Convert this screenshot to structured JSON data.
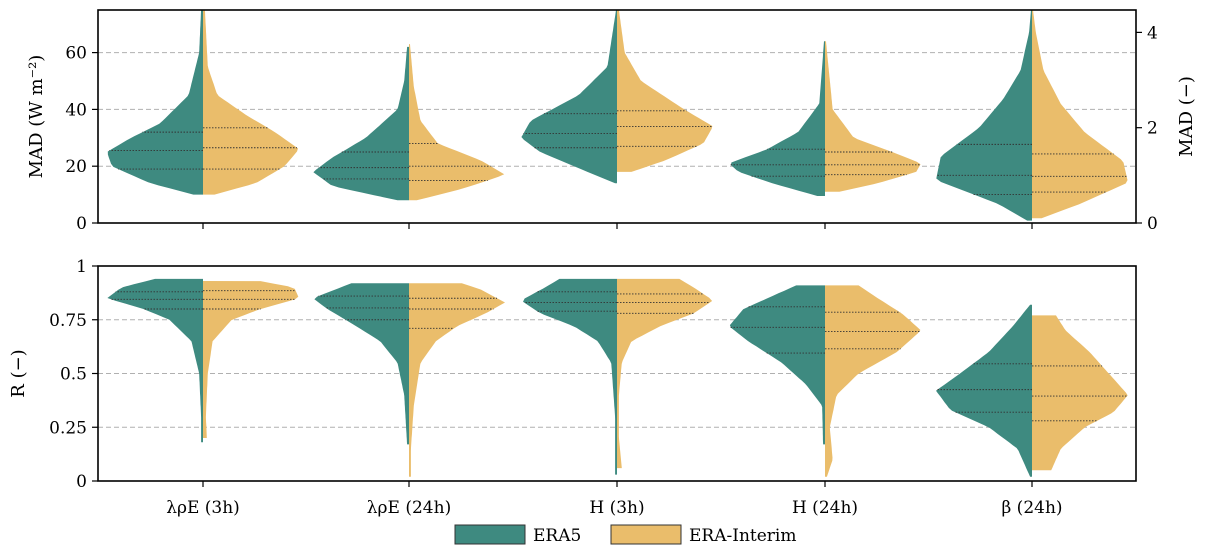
{
  "colors": {
    "era5": "#3e8a80",
    "interim": "#eabd6b"
  },
  "legend": [
    {
      "label": "ERA5",
      "color": "#3e8a80"
    },
    {
      "label": "ERA-Interim",
      "color": "#eabd6b"
    }
  ],
  "chart_data": [
    {
      "type": "violin",
      "panel": "top",
      "categories": [
        "λρE (3h)",
        "λρE (24h)",
        "H (3h)",
        "H (24h)",
        "β (24h)"
      ],
      "ylabel": "MAD (W m⁻²)",
      "ylim": [
        0,
        75
      ],
      "yticks": [
        0,
        20,
        40,
        60
      ],
      "ylabel_right": "MAD (−)",
      "ylim_right": [
        0,
        4.47
      ],
      "yticks_right": [
        0,
        2,
        4
      ],
      "grid": "y dashed",
      "series": [
        {
          "name": "ERA5",
          "violins": [
            {
              "axis": "left",
              "profile": [
                [
                  10,
                  0.1
                ],
                [
                  14,
                  0.55
                ],
                [
                  20,
                  0.95
                ],
                [
                  25,
                  1.0
                ],
                [
                  30,
                  0.75
                ],
                [
                  35,
                  0.45
                ],
                [
                  45,
                  0.15
                ],
                [
                  60,
                  0.04
                ],
                [
                  75,
                  0.02
                ]
              ],
              "q1": 19,
              "median": 25.5,
              "q3": 32
            },
            {
              "axis": "left",
              "profile": [
                [
                  8,
                  0.12
                ],
                [
                  13,
                  0.8
                ],
                [
                  18,
                  1.0
                ],
                [
                  23,
                  0.8
                ],
                [
                  30,
                  0.45
                ],
                [
                  40,
                  0.12
                ],
                [
                  50,
                  0.05
                ],
                [
                  62,
                  0.02
                ]
              ],
              "q1": 15.5,
              "median": 19.5,
              "q3": 25
            },
            {
              "axis": "left",
              "profile": [
                [
                  14,
                  0.02
                ],
                [
                  20,
                  0.45
                ],
                [
                  25,
                  0.8
                ],
                [
                  30,
                  1.0
                ],
                [
                  36,
                  0.9
                ],
                [
                  45,
                  0.4
                ],
                [
                  55,
                  0.1
                ],
                [
                  75,
                  0.01
                ]
              ],
              "q1": 26.5,
              "median": 31.5,
              "q3": 38.5
            },
            {
              "axis": "left",
              "profile": [
                [
                  9.5,
                  0.08
                ],
                [
                  14,
                  0.55
                ],
                [
                  18,
                  0.9
                ],
                [
                  21,
                  1.0
                ],
                [
                  26,
                  0.6
                ],
                [
                  32,
                  0.28
                ],
                [
                  42,
                  0.06
                ],
                [
                  64,
                  0.01
                ]
              ],
              "q1": 16.5,
              "median": 20.5,
              "q3": 26
            },
            {
              "axis": "right",
              "profile": [
                [
                  0.05,
                  0.05
                ],
                [
                  0.4,
                  0.35
                ],
                [
                  0.9,
                  1.0
                ],
                [
                  1.4,
                  0.95
                ],
                [
                  2.0,
                  0.55
                ],
                [
                  2.6,
                  0.3
                ],
                [
                  3.2,
                  0.12
                ],
                [
                  4.0,
                  0.03
                ],
                [
                  4.47,
                  0.01
                ]
              ],
              "q1": 0.6,
              "median": 1.0,
              "q3": 1.65
            }
          ]
        },
        {
          "name": "ERA-Interim",
          "violins": [
            {
              "axis": "left",
              "profile": [
                [
                  10,
                  0.12
                ],
                [
                  14,
                  0.55
                ],
                [
                  20,
                  0.85
                ],
                [
                  26,
                  1.0
                ],
                [
                  32,
                  0.75
                ],
                [
                  38,
                  0.45
                ],
                [
                  45,
                  0.15
                ],
                [
                  55,
                  0.05
                ],
                [
                  75,
                  0.02
                ]
              ],
              "q1": 19,
              "median": 26.5,
              "q3": 33.5
            },
            {
              "axis": "left",
              "profile": [
                [
                  8,
                  0.08
                ],
                [
                  12,
                  0.55
                ],
                [
                  17,
                  1.0
                ],
                [
                  22,
                  0.75
                ],
                [
                  28,
                  0.3
                ],
                [
                  36,
                  0.12
                ],
                [
                  48,
                  0.05
                ],
                [
                  63,
                  0.01
                ]
              ],
              "q1": 15,
              "median": 20,
              "q3": 28
            },
            {
              "axis": "left",
              "profile": [
                [
                  18,
                  0.15
                ],
                [
                  22,
                  0.5
                ],
                [
                  28,
                  0.9
                ],
                [
                  34,
                  1.0
                ],
                [
                  40,
                  0.7
                ],
                [
                  50,
                  0.25
                ],
                [
                  60,
                  0.08
                ],
                [
                  75,
                  0.02
                ]
              ],
              "q1": 27,
              "median": 34,
              "q3": 39.5
            },
            {
              "axis": "left",
              "profile": [
                [
                  11,
                  0.15
                ],
                [
                  14,
                  0.55
                ],
                [
                  18,
                  0.95
                ],
                [
                  21,
                  1.0
                ],
                [
                  25,
                  0.7
                ],
                [
                  30,
                  0.3
                ],
                [
                  40,
                  0.08
                ],
                [
                  64,
                  0.01
                ]
              ],
              "q1": 17,
              "median": 20.5,
              "q3": 25
            },
            {
              "axis": "right",
              "profile": [
                [
                  0.1,
                  0.1
                ],
                [
                  0.4,
                  0.5
                ],
                [
                  0.85,
                  1.0
                ],
                [
                  1.3,
                  0.95
                ],
                [
                  1.9,
                  0.55
                ],
                [
                  2.5,
                  0.3
                ],
                [
                  3.2,
                  0.12
                ],
                [
                  4.0,
                  0.04
                ],
                [
                  4.47,
                  0.01
                ]
              ],
              "q1": 0.65,
              "median": 0.98,
              "q3": 1.45
            }
          ]
        }
      ]
    },
    {
      "type": "violin",
      "panel": "bottom",
      "categories": [
        "λρE (3h)",
        "λρE (24h)",
        "H (3h)",
        "H (24h)",
        "β (24h)"
      ],
      "ylabel": "R (−)",
      "ylim": [
        0,
        1
      ],
      "yticks": [
        0,
        0.25,
        0.5,
        0.75,
        1
      ],
      "ytick_labels": [
        "0",
        "0.25",
        "0.5",
        "0.75",
        "1"
      ],
      "grid": "y dashed",
      "series": [
        {
          "name": "ERA5",
          "violins": [
            {
              "profile": [
                [
                  0.18,
                  0.02
                ],
                [
                  0.3,
                  0.02
                ],
                [
                  0.5,
                  0.04
                ],
                [
                  0.65,
                  0.12
                ],
                [
                  0.75,
                  0.35
                ],
                [
                  0.8,
                  0.62
                ],
                [
                  0.85,
                  1.0
                ],
                [
                  0.9,
                  0.85
                ],
                [
                  0.94,
                  0.5
                ]
              ],
              "q1": 0.8,
              "median": 0.845,
              "q3": 0.88
            },
            {
              "profile": [
                [
                  0.17,
                  0.02
                ],
                [
                  0.4,
                  0.05
                ],
                [
                  0.55,
                  0.12
                ],
                [
                  0.65,
                  0.3
                ],
                [
                  0.72,
                  0.55
                ],
                [
                  0.8,
                  0.85
                ],
                [
                  0.85,
                  1.0
                ],
                [
                  0.92,
                  0.6
                ]
              ],
              "q1": 0.75,
              "median": 0.805,
              "q3": 0.86
            },
            {
              "profile": [
                [
                  0.03,
                  0.02
                ],
                [
                  0.15,
                  0.02
                ],
                [
                  0.3,
                  0.02
                ],
                [
                  0.55,
                  0.06
                ],
                [
                  0.65,
                  0.2
                ],
                [
                  0.72,
                  0.45
                ],
                [
                  0.78,
                  0.8
                ],
                [
                  0.84,
                  1.0
                ],
                [
                  0.9,
                  0.75
                ],
                [
                  0.94,
                  0.6
                ]
              ],
              "q1": 0.79,
              "median": 0.83,
              "q3": 0.88
            },
            {
              "profile": [
                [
                  0.17,
                  0.02
                ],
                [
                  0.35,
                  0.03
                ],
                [
                  0.45,
                  0.2
                ],
                [
                  0.55,
                  0.45
                ],
                [
                  0.65,
                  0.8
                ],
                [
                  0.72,
                  1.0
                ],
                [
                  0.8,
                  0.85
                ],
                [
                  0.87,
                  0.5
                ],
                [
                  0.91,
                  0.3
                ]
              ],
              "q1": 0.595,
              "median": 0.715,
              "q3": 0.81
            },
            {
              "profile": [
                [
                  0.02,
                  0.02
                ],
                [
                  0.15,
                  0.15
                ],
                [
                  0.25,
                  0.45
                ],
                [
                  0.33,
                  0.85
                ],
                [
                  0.42,
                  1.0
                ],
                [
                  0.5,
                  0.75
                ],
                [
                  0.6,
                  0.45
                ],
                [
                  0.72,
                  0.2
                ],
                [
                  0.82,
                  0.02
                ]
              ],
              "q1": 0.32,
              "median": 0.425,
              "q3": 0.545
            }
          ]
        },
        {
          "name": "ERA-Interim",
          "violins": [
            {
              "profile": [
                [
                  0.2,
                  0.04
                ],
                [
                  0.3,
                  0.03
                ],
                [
                  0.5,
                  0.05
                ],
                [
                  0.65,
                  0.1
                ],
                [
                  0.75,
                  0.3
                ],
                [
                  0.8,
                  0.6
                ],
                [
                  0.85,
                  1.0
                ],
                [
                  0.9,
                  0.95
                ],
                [
                  0.93,
                  0.6
                ]
              ],
              "q1": 0.8,
              "median": 0.845,
              "q3": 0.885
            },
            {
              "profile": [
                [
                  0.02,
                  0.02
                ],
                [
                  0.15,
                  0.02
                ],
                [
                  0.35,
                  0.05
                ],
                [
                  0.55,
                  0.12
                ],
                [
                  0.65,
                  0.28
                ],
                [
                  0.72,
                  0.5
                ],
                [
                  0.78,
                  0.8
                ],
                [
                  0.83,
                  1.0
                ],
                [
                  0.89,
                  0.75
                ],
                [
                  0.92,
                  0.55
                ]
              ],
              "q1": 0.71,
              "median": 0.8,
              "q3": 0.85
            },
            {
              "profile": [
                [
                  0.06,
                  0.05
                ],
                [
                  0.2,
                  0.02
                ],
                [
                  0.4,
                  0.02
                ],
                [
                  0.55,
                  0.05
                ],
                [
                  0.65,
                  0.15
                ],
                [
                  0.72,
                  0.45
                ],
                [
                  0.78,
                  0.8
                ],
                [
                  0.84,
                  1.0
                ],
                [
                  0.9,
                  0.8
                ],
                [
                  0.94,
                  0.65
                ]
              ],
              "q1": 0.78,
              "median": 0.83,
              "q3": 0.87
            },
            {
              "profile": [
                [
                  0.02,
                  0.02
                ],
                [
                  0.1,
                  0.08
                ],
                [
                  0.25,
                  0.05
                ],
                [
                  0.4,
                  0.12
                ],
                [
                  0.5,
                  0.35
                ],
                [
                  0.6,
                  0.75
                ],
                [
                  0.7,
                  1.0
                ],
                [
                  0.78,
                  0.8
                ],
                [
                  0.85,
                  0.55
                ],
                [
                  0.91,
                  0.35
                ]
              ],
              "q1": 0.615,
              "median": 0.695,
              "q3": 0.785
            },
            {
              "profile": [
                [
                  0.05,
                  0.2
                ],
                [
                  0.15,
                  0.3
                ],
                [
                  0.25,
                  0.55
                ],
                [
                  0.32,
                  0.85
                ],
                [
                  0.4,
                  1.0
                ],
                [
                  0.5,
                  0.8
                ],
                [
                  0.6,
                  0.6
                ],
                [
                  0.7,
                  0.35
                ],
                [
                  0.77,
                  0.25
                ]
              ],
              "q1": 0.28,
              "median": 0.395,
              "q3": 0.535
            }
          ]
        }
      ]
    }
  ]
}
